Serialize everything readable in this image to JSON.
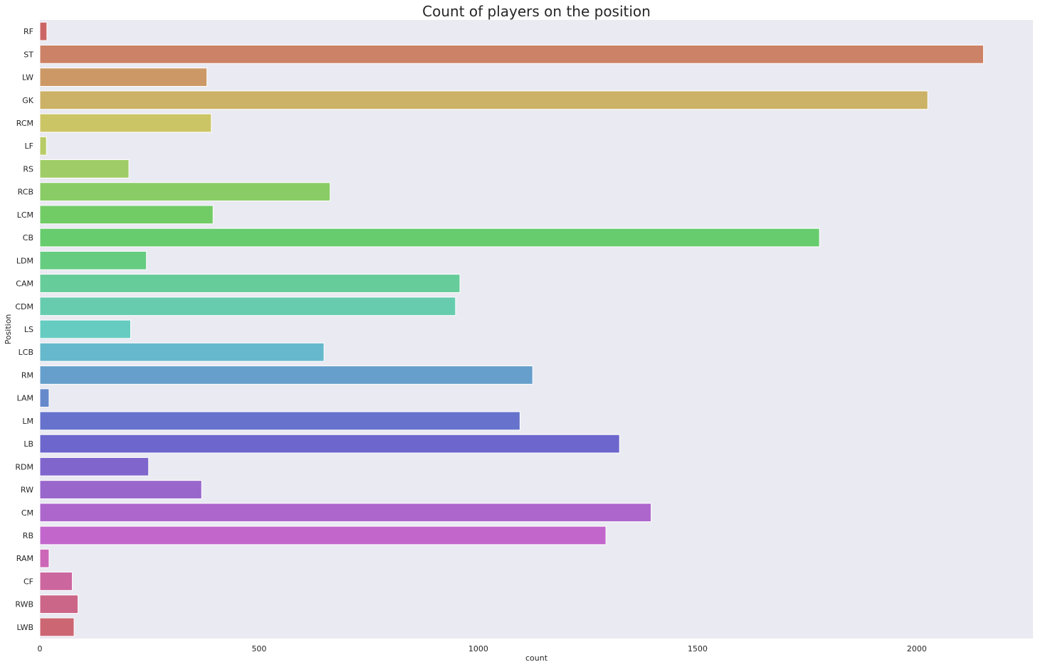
{
  "chart_data": {
    "type": "bar",
    "orientation": "horizontal",
    "title": "Count of players on the position",
    "xlabel": "count",
    "ylabel": "Position",
    "xlim": [
      0,
      2265
    ],
    "xticks": [
      0,
      500,
      1000,
      1500,
      2000
    ],
    "grid": false,
    "background": "#eaeaf2",
    "categories": [
      "RF",
      "ST",
      "LW",
      "GK",
      "RCM",
      "LF",
      "RS",
      "RCB",
      "LCM",
      "CB",
      "LDM",
      "CAM",
      "CDM",
      "LS",
      "LCB",
      "RM",
      "LAM",
      "LM",
      "LB",
      "RDM",
      "RW",
      "CM",
      "RB",
      "RAM",
      "CF",
      "RWB",
      "LWB"
    ],
    "values": [
      16,
      2152,
      381,
      2025,
      391,
      15,
      203,
      662,
      395,
      1778,
      243,
      958,
      948,
      207,
      648,
      1124,
      21,
      1095,
      1322,
      248,
      369,
      1394,
      1291,
      21,
      74,
      87,
      78
    ],
    "colors": [
      "#cc6666",
      "#cc8266",
      "#cc9966",
      "#ccb266",
      "#ccc566",
      "#b8cc66",
      "#9fcc66",
      "#89cc66",
      "#72cc66",
      "#66cc6d",
      "#66cc80",
      "#66cc99",
      "#66ccad",
      "#66ccc2",
      "#66b8cc",
      "#669fcc",
      "#6689cc",
      "#6672cc",
      "#6d66cc",
      "#8066cc",
      "#9966cc",
      "#ad66cc",
      "#c266cc",
      "#cc66b8",
      "#cc669f",
      "#cc6689",
      "#cc6672"
    ]
  }
}
